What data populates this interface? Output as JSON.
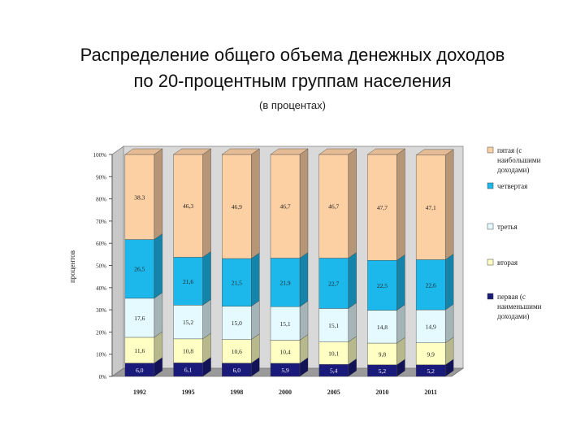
{
  "title_line1": "Распределение общего объема денежных доходов",
  "title_line2": "по 20-процентным группам населения",
  "subtitle": "(в процентах)",
  "chart_data": {
    "type": "bar",
    "stacked": true,
    "ylabel": "процентов",
    "ylim": [
      0,
      100
    ],
    "yticks": [
      "0%",
      "10%",
      "20%",
      "30%",
      "40%",
      "50%",
      "60%",
      "70%",
      "80%",
      "90%",
      "100%"
    ],
    "categories": [
      "1992",
      "1995",
      "1998",
      "2000",
      "2005",
      "2010",
      "2011"
    ],
    "series": [
      {
        "name": "первая (с наименьшими доходами)",
        "color": "#1a1a7a",
        "label_color": "#ffffff",
        "values": [
          6.0,
          6.1,
          6.0,
          5.9,
          5.4,
          5.2,
          5.2
        ],
        "labels": [
          "6,0",
          "6,1",
          "6,0",
          "5,9",
          "5,4",
          "5,2",
          "5,2"
        ]
      },
      {
        "name": "вторая",
        "color": "#ffffc4",
        "label_color": "#222222",
        "values": [
          11.6,
          10.8,
          10.6,
          10.4,
          10.1,
          9.8,
          9.9
        ],
        "labels": [
          "11,6",
          "10,8",
          "10,6",
          "10,4",
          "10,1",
          "9,8",
          "9,9"
        ]
      },
      {
        "name": "третья",
        "color": "#e4fafe",
        "label_color": "#222222",
        "values": [
          17.6,
          15.2,
          15.0,
          15.1,
          15.1,
          14.8,
          14.9
        ],
        "labels": [
          "17,6",
          "15,2",
          "15,0",
          "15,1",
          "15,1",
          "14,8",
          "14,9"
        ]
      },
      {
        "name": "четвертая",
        "color": "#1cb8ec",
        "label_color": "#222222",
        "values": [
          26.5,
          21.6,
          21.5,
          21.9,
          22.7,
          22.5,
          22.6
        ],
        "labels": [
          "26,5",
          "21,6",
          "21,5",
          "21,9",
          "22,7",
          "22,5",
          "22,6"
        ]
      },
      {
        "name": "пятая (с наибольшими доходами)",
        "color": "#fdd0a4",
        "label_color": "#222222",
        "values": [
          38.3,
          46.3,
          46.9,
          46.7,
          46.7,
          47.7,
          47.1
        ],
        "labels": [
          "38,3",
          "46,3",
          "46,9",
          "46,7",
          "46,7",
          "47,7",
          "47,1"
        ]
      }
    ],
    "legend_position": "right",
    "grid": false
  }
}
